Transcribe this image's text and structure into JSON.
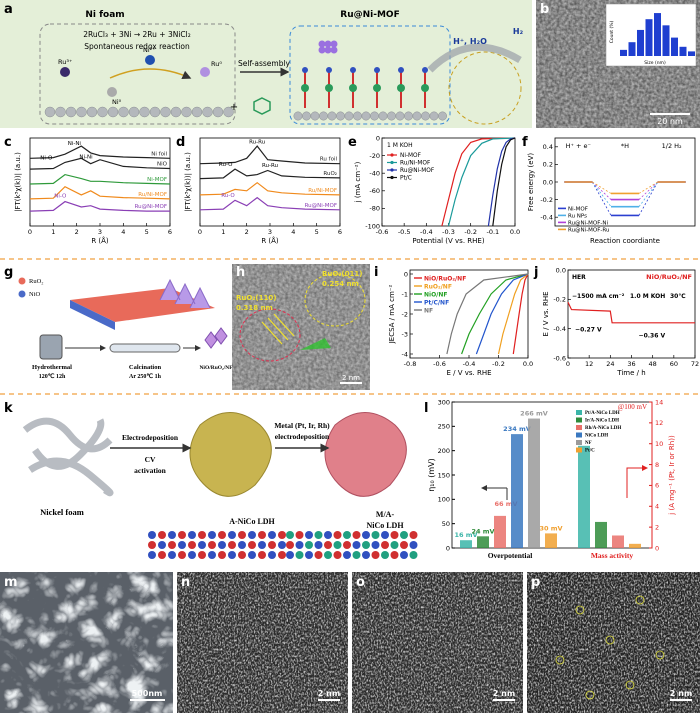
{
  "a": {
    "label": "a",
    "ni_foam": "Ni foam",
    "reaction": "2RuCl₃ + 3Ni → 2Ru + 3NiCl₂",
    "reaction_note": "Spontaneous redox reaction",
    "ions": [
      "Ru³⁺",
      "Ni²⁺",
      "Ru⁰",
      "Ni⁰"
    ],
    "self_assembly": "Self-assembly",
    "plus": "+",
    "product": "Ru@Ni-MOF",
    "reactants": "H⁺, H₂O",
    "gas": "H₂"
  },
  "b": {
    "label": "b",
    "inset": {
      "x_label": "Size (nm)",
      "y_label": "Count (%)",
      "values": [
        4,
        9,
        17,
        24,
        28,
        20,
        12,
        6,
        3
      ]
    },
    "scale_bar": "20 nm"
  },
  "c": {
    "label": "c",
    "type": "line",
    "x_label": "R (Å)",
    "y_label": "|FT(k³χ(k))| (a.u.)",
    "xlim": [
      0,
      6
    ],
    "xticks": [
      0,
      1,
      2,
      3,
      4,
      5,
      6
    ],
    "ylim": [
      0,
      6.5
    ],
    "series": [
      {
        "name": "Ni foil",
        "color": "#222222",
        "x": [
          0,
          1,
          1.5,
          2.2,
          2.6,
          3,
          4,
          5,
          6
        ],
        "values": [
          5.0,
          5.05,
          5.3,
          5.9,
          5.4,
          5.2,
          5.1,
          5.05,
          5.0
        ]
      },
      {
        "name": "NiO",
        "color": "#222222",
        "x": [
          0,
          1,
          1.5,
          2.2,
          2.6,
          3,
          4,
          5,
          6
        ],
        "values": [
          4.2,
          4.25,
          4.7,
          5.0,
          4.6,
          4.9,
          4.4,
          4.3,
          4.25
        ]
      },
      {
        "name": "Ni-MOF",
        "color": "#2e9a3a",
        "x": [
          0,
          1,
          1.5,
          2.2,
          2.6,
          3,
          4,
          5,
          6
        ],
        "values": [
          3.1,
          3.15,
          3.8,
          3.5,
          3.3,
          3.3,
          3.2,
          3.15,
          3.1
        ]
      },
      {
        "name": "Ru/Ni-MOF",
        "color": "#f08a1c",
        "x": [
          0,
          1,
          1.5,
          2.2,
          2.6,
          3,
          4,
          5,
          6
        ],
        "values": [
          2.0,
          2.05,
          2.9,
          2.3,
          2.6,
          2.2,
          2.1,
          2.05,
          2.0
        ]
      },
      {
        "name": "Ru@Ni-MOF",
        "color": "#8a3fb5",
        "x": [
          0,
          1,
          1.5,
          2.2,
          2.6,
          3,
          4,
          5,
          6
        ],
        "values": [
          1.1,
          1.15,
          1.8,
          1.4,
          1.5,
          1.25,
          1.15,
          1.1,
          1.1
        ]
      }
    ],
    "annotations": [
      "Ni-Ni",
      "Ni-O",
      "Ni-Ni",
      "Ni-O"
    ]
  },
  "d": {
    "label": "d",
    "type": "line",
    "x_label": "R (Å)",
    "y_label": "|FT(k³χ(k))| (a.u.)",
    "xlim": [
      0,
      6
    ],
    "xticks": [
      0,
      1,
      2,
      3,
      4,
      5,
      6
    ],
    "ylim": [
      0,
      6.5
    ],
    "series": [
      {
        "name": "Ru foil",
        "color": "#222222",
        "x": [
          0,
          1,
          1.5,
          2.0,
          2.45,
          2.9,
          3.5,
          4.5,
          6
        ],
        "values": [
          4.6,
          4.65,
          4.7,
          5.0,
          5.9,
          4.9,
          4.8,
          4.65,
          4.6
        ]
      },
      {
        "name": "RuO₂",
        "color": "#222222",
        "x": [
          0,
          1,
          1.5,
          2.0,
          2.45,
          2.9,
          3.5,
          4.5,
          6
        ],
        "values": [
          3.5,
          3.55,
          4.2,
          3.7,
          3.8,
          4.1,
          3.7,
          3.6,
          3.55
        ]
      },
      {
        "name": "Ru/Ni-MOF",
        "color": "#f08a1c",
        "x": [
          0,
          1,
          1.5,
          2.0,
          2.45,
          2.9,
          3.5,
          4.5,
          6
        ],
        "values": [
          2.3,
          2.35,
          2.7,
          2.6,
          3.2,
          2.6,
          2.45,
          2.35,
          2.3
        ]
      },
      {
        "name": "Ru@Ni-MOF",
        "color": "#8a3fb5",
        "x": [
          0,
          1,
          1.5,
          2.0,
          2.45,
          2.9,
          3.5,
          4.5,
          6
        ],
        "values": [
          1.2,
          1.25,
          1.9,
          1.5,
          2.1,
          1.5,
          1.35,
          1.25,
          1.2
        ]
      }
    ],
    "annotations": [
      "Ru-Ru",
      "Ru-O",
      "Ru-Ru",
      "Ru-O"
    ]
  },
  "e": {
    "label": "e",
    "type": "line",
    "x_label": "Potential (V vs. RHE)",
    "y_label": "j (mA cm⁻²)",
    "note": "1 M KOH",
    "xlim": [
      -0.6,
      0
    ],
    "xticks": [
      -0.6,
      -0.5,
      -0.4,
      -0.3,
      -0.2,
      -0.1,
      {
        "value": 0,
        "label": "0.0"
      }
    ],
    "ylim": [
      -100,
      0
    ],
    "yticks": [
      -100,
      -80,
      -60,
      -40,
      -20,
      0
    ],
    "series": [
      {
        "name": "Ni-MOF",
        "color": "#e02020",
        "x": [
          -0.33,
          -0.3,
          -0.27,
          -0.24,
          -0.2,
          -0.15,
          0
        ],
        "values": [
          -100,
          -70,
          -40,
          -18,
          -5,
          -1,
          0
        ]
      },
      {
        "name": "Ru/Ni-MOF",
        "color": "#1a9a9a",
        "x": [
          -0.3,
          -0.27,
          -0.24,
          -0.2,
          -0.15,
          -0.1,
          0
        ],
        "values": [
          -100,
          -70,
          -45,
          -20,
          -6,
          -1,
          0
        ]
      },
      {
        "name": "Ru@Ni-MOF",
        "color": "#2233aa",
        "x": [
          -0.12,
          -0.1,
          -0.08,
          -0.06,
          -0.04,
          -0.02,
          0
        ],
        "values": [
          -100,
          -65,
          -35,
          -15,
          -5,
          -1,
          0
        ]
      },
      {
        "name": "Pt/C",
        "color": "#111111",
        "x": [
          -0.1,
          -0.08,
          -0.06,
          -0.04,
          -0.02,
          0
        ],
        "values": [
          -100,
          -60,
          -30,
          -10,
          -2,
          0
        ]
      }
    ]
  },
  "f": {
    "label": "f",
    "type": "energy-levels",
    "x_label": "Reaction coordiante",
    "y_label": "Free energy (eV)",
    "states": [
      "H⁺ + e⁻",
      "*H",
      "1/2 H₂"
    ],
    "ylim": [
      -0.5,
      0.5
    ],
    "yticks": [
      -0.4,
      -0.2,
      {
        "value": 0,
        "label": "0.0"
      },
      0.2,
      0.4
    ],
    "series": [
      {
        "name": "Ni-MOF",
        "color": "#2b3fd0",
        "values": [
          0,
          -0.38,
          0
        ]
      },
      {
        "name": "Ru NPs",
        "color": "#4fb0e8",
        "values": [
          0,
          -0.28,
          0
        ]
      },
      {
        "name": "Ru@Ni-MOF-Ni",
        "color": "#b040d8",
        "values": [
          0,
          -0.2,
          0
        ]
      },
      {
        "name": "Ru@Ni-MOF-Ru",
        "color": "#f0a030",
        "values": [
          0,
          -0.13,
          0
        ]
      }
    ]
  },
  "g": {
    "label": "g",
    "legend": [
      "RuO₂",
      "NiO"
    ],
    "step1": [
      "Hydrothermal",
      "120℃  12h"
    ],
    "step2": [
      "Calcination",
      "Ar  250℃  1h"
    ],
    "product": "NiO/RuO₂/NF"
  },
  "h": {
    "label": "h",
    "planes": [
      {
        "name": "RuO₂(011)",
        "spacing": "0.254 nm"
      },
      {
        "name": "RuO₂(110)",
        "spacing": "0.318 nm"
      }
    ],
    "scale_bar": "2 nm"
  },
  "i": {
    "label": "i",
    "type": "line",
    "x_label": "E / V vs. RHE",
    "y_label": "JECSA / mA cm⁻²",
    "xlim": [
      -0.8,
      0
    ],
    "xticks": [
      -0.8,
      -0.6,
      -0.4,
      -0.2,
      {
        "value": 0,
        "label": "0.0"
      }
    ],
    "ylim": [
      -4.2,
      0.2
    ],
    "yticks": [
      -4,
      -3,
      -2,
      -1,
      0
    ],
    "series": [
      {
        "name": "NiO/RuO₂/NF",
        "color": "#e02020",
        "x": [
          -0.1,
          -0.08,
          -0.06,
          -0.04,
          -0.02,
          0
        ],
        "values": [
          -4,
          -3,
          -2,
          -1,
          -0.3,
          0
        ]
      },
      {
        "name": "RuO₂/NF",
        "color": "#f0a020",
        "x": [
          -0.2,
          -0.17,
          -0.13,
          -0.09,
          -0.05,
          0
        ],
        "values": [
          -4,
          -3,
          -2,
          -1,
          -0.3,
          0
        ]
      },
      {
        "name": "NiO/NF",
        "color": "#22a022",
        "x": [
          -0.45,
          -0.4,
          -0.33,
          -0.25,
          -0.15,
          0
        ],
        "values": [
          -4,
          -3,
          -2,
          -1,
          -0.3,
          0
        ]
      },
      {
        "name": "Pt/C/NF",
        "color": "#2255cc",
        "x": [
          -0.35,
          -0.3,
          -0.25,
          -0.18,
          -0.1,
          0
        ],
        "values": [
          -4,
          -3,
          -2,
          -1,
          -0.3,
          0
        ]
      },
      {
        "name": "NF",
        "color": "#777777",
        "x": [
          -0.55,
          -0.52,
          -0.48,
          -0.42,
          -0.3,
          0
        ],
        "values": [
          -4,
          -3,
          -2,
          -1,
          -0.3,
          0
        ]
      }
    ]
  },
  "j": {
    "label": "j",
    "type": "line",
    "x_label": "Time / h",
    "y_label": "E / V vs. RHE",
    "xlim": [
      0,
      72
    ],
    "xticks": [
      0,
      12,
      24,
      36,
      48,
      60,
      72
    ],
    "ylim": [
      -0.6,
      0
    ],
    "yticks": [
      -0.6,
      -0.4,
      -0.2,
      {
        "value": 0,
        "label": "0.0"
      }
    ],
    "series": [
      {
        "name": "NiO/RuO₂/NF",
        "color": "#e02020",
        "x": [
          0,
          2,
          24,
          25,
          36,
          48,
          60,
          72
        ],
        "values": [
          -0.22,
          -0.27,
          -0.28,
          -0.36,
          -0.36,
          -0.36,
          -0.36,
          -0.36
        ]
      }
    ],
    "annotations": [
      "HER",
      "−1500 mA cm⁻²",
      "1.0 M KOH",
      "30℃",
      "−0.27 V",
      "−0.36 V"
    ]
  },
  "k": {
    "label": "k",
    "substrate": "Nickel foam",
    "step1": [
      "Electrodeposition",
      "CV",
      "activation"
    ],
    "step2": [
      "Metal (Pt, Ir, Rh)",
      "electrodeposition"
    ],
    "intermediate": "A-NiCo LDH",
    "product": [
      "M/A-",
      "NiCo LDH"
    ]
  },
  "l": {
    "label": "l",
    "type": "bar",
    "y_label": "η₁₀ (mV)",
    "y2_label": "j (A mg⁻¹ (Pt, Ir or Rh))",
    "note": "@100 mV",
    "categories": [
      "Overpotential",
      "Mass activity"
    ],
    "ylim": [
      0,
      300
    ],
    "yticks": [
      0,
      50,
      100,
      150,
      200,
      250,
      300
    ],
    "y2lim": [
      0,
      14
    ],
    "y2ticks": [
      0,
      2,
      4,
      6,
      8,
      10,
      12,
      14
    ],
    "series": [
      {
        "name": "Pt/A-NiCo LDH",
        "color": "#3bb5a8",
        "overpotential": 16,
        "overpotential_label": "16 mV",
        "mass_activity": 9.8
      },
      {
        "name": "Ir/A-NiCo LDH",
        "color": "#2e8b3a",
        "overpotential": 24,
        "overpotential_label": "24 mV",
        "mass_activity": 2.5
      },
      {
        "name": "Rh/A-NiCo LDH",
        "color": "#e9706a",
        "overpotential": 66,
        "overpotential_label": "66 mV",
        "mass_activity": 1.2
      },
      {
        "name": "NiCo LDH",
        "color": "#3a78c0",
        "overpotential": 234,
        "overpotential_label": "234 mV",
        "mass_activity": null
      },
      {
        "name": "NF",
        "color": "#9a9a9a",
        "overpotential": 266,
        "overpotential_label": "266 mV",
        "mass_activity": null
      },
      {
        "name": "Pt/C",
        "color": "#f0a030",
        "overpotential": 30,
        "overpotential_label": "30 mV",
        "mass_activity": 0.4
      }
    ]
  },
  "m": {
    "label": "m",
    "scale_bar": "500nm"
  },
  "n": {
    "label": "n",
    "scale_bar": "2 nm"
  },
  "o": {
    "label": "o",
    "scale_bar": "2 nm"
  },
  "p": {
    "label": "p",
    "scale_bar": "2 nm"
  }
}
